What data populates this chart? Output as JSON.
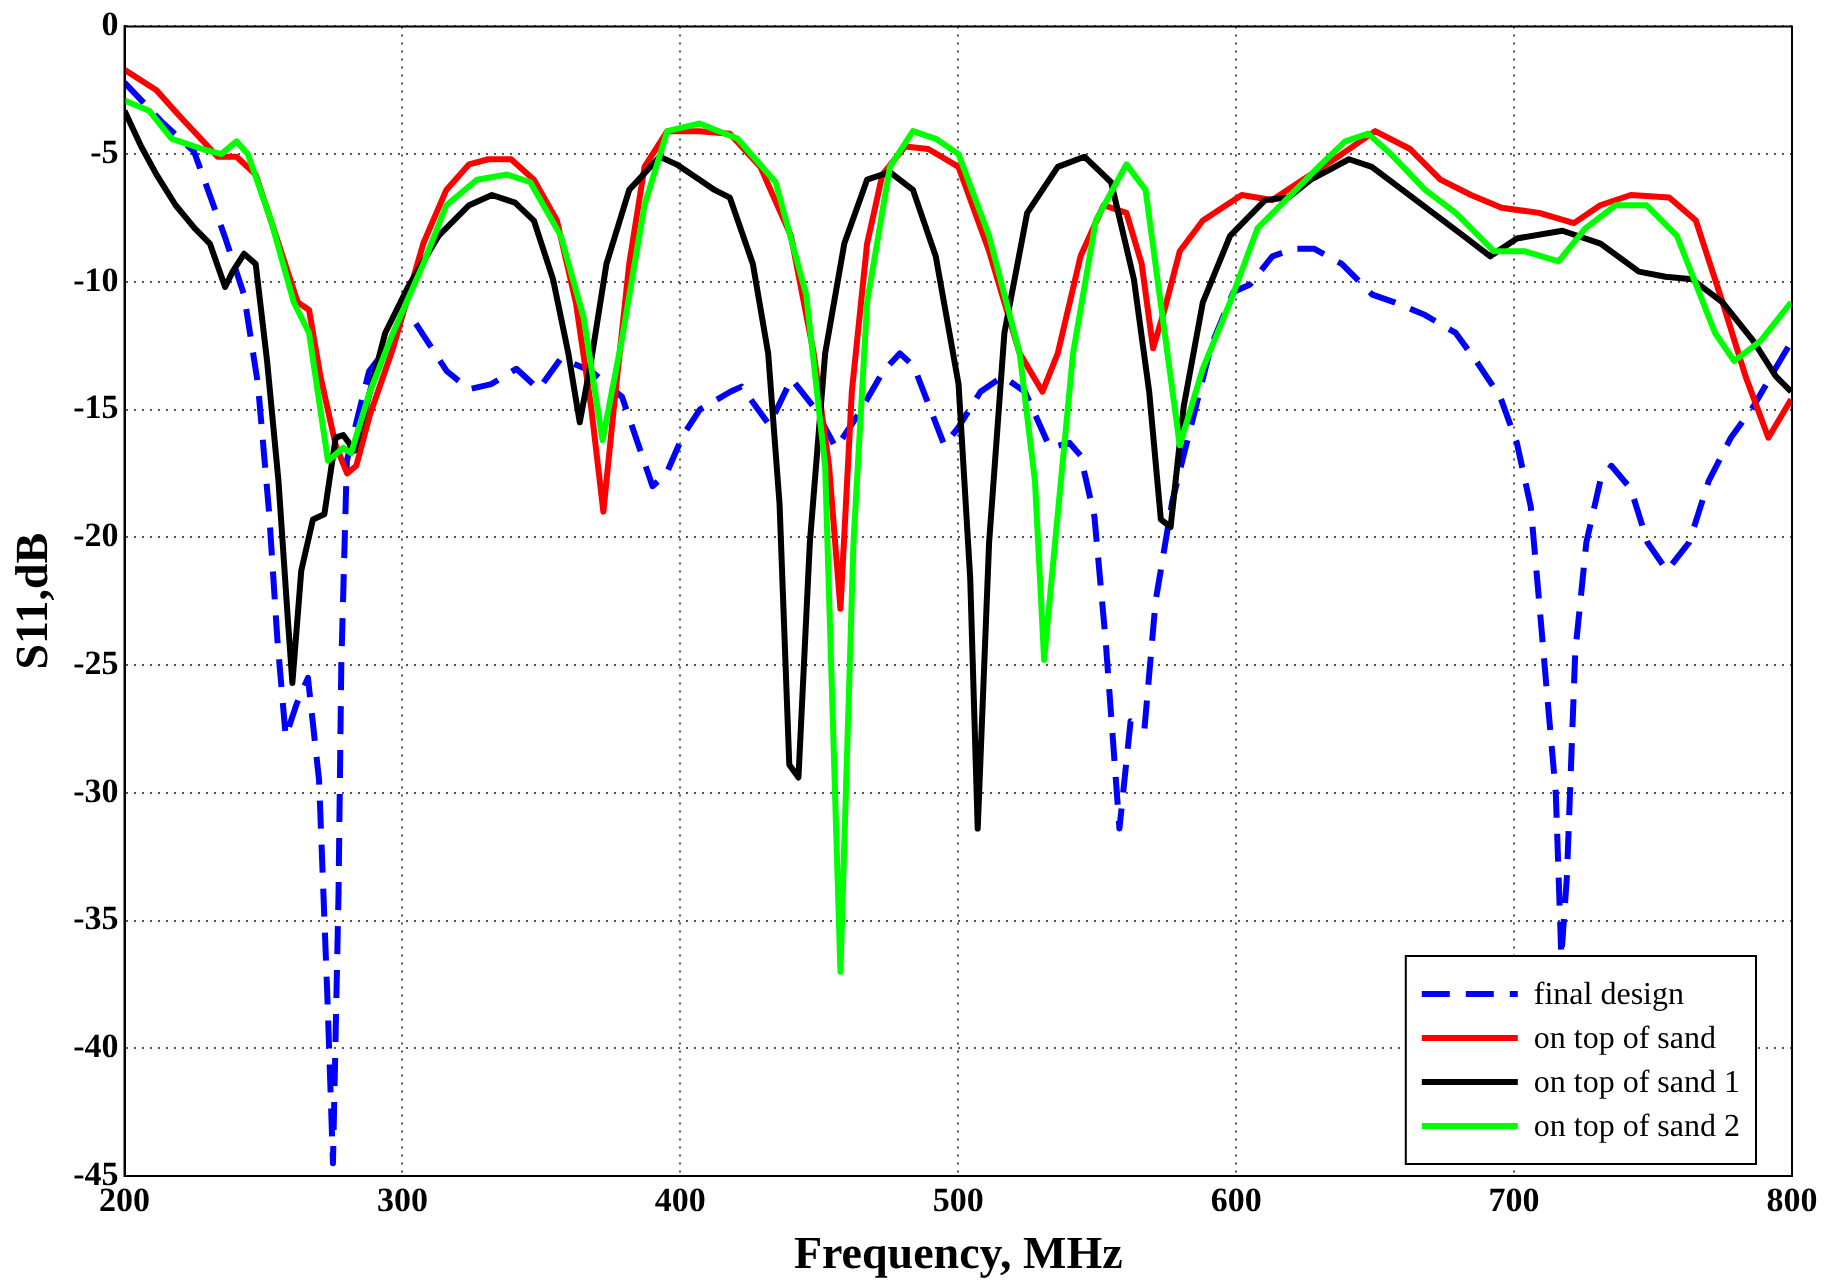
{
  "chart_data": {
    "type": "line",
    "xlabel": "Frequency, MHz",
    "ylabel": "S11,dB",
    "xlim": [
      200,
      800
    ],
    "xticks": [
      200,
      300,
      400,
      500,
      600,
      700,
      800
    ],
    "ylim": [
      -45,
      0
    ],
    "yticks": [
      -45,
      -40,
      -35,
      -30,
      -25,
      -20,
      -15,
      -10,
      -5,
      0
    ],
    "grid": true,
    "legend": "bottom right",
    "marker": "none",
    "series": [
      {
        "name": "final design",
        "color": "#0000ff",
        "line_style": "dashed",
        "x": [
          200,
          214,
          225,
          236,
          243,
          248,
          252,
          255,
          258,
          262,
          266,
          270,
          273,
          275,
          277,
          278,
          280,
          288,
          295,
          299,
          304,
          316,
          324,
          332,
          341,
          349,
          357,
          368,
          379,
          390,
          395,
          401,
          407,
          418,
          422,
          432,
          440,
          448,
          456,
          464,
          473,
          479,
          484,
          495,
          500,
          508,
          516,
          524,
          533,
          540,
          544,
          549,
          553,
          558,
          562,
          567,
          571,
          577,
          582,
          591,
          599,
          605,
          613,
          621,
          628,
          638,
          649,
          657,
          668,
          679,
          687,
          695,
          701,
          706,
          709,
          712,
          715,
          717,
          719,
          722,
          726,
          731,
          735,
          742,
          748,
          755,
          763,
          770,
          778,
          786,
          794,
          800
        ],
        "values": [
          -2.2,
          -3.8,
          -4.9,
          -8.2,
          -10.5,
          -14,
          -19,
          -24,
          -27.8,
          -26.5,
          -25.5,
          -29.5,
          -38,
          -44.5,
          -34,
          -25,
          -17,
          -13.5,
          -12.5,
          -11.7,
          -11.5,
          -13.5,
          -14.2,
          -14,
          -13.4,
          -14.2,
          -13,
          -13.5,
          -14.5,
          -18,
          -17.5,
          -16,
          -15,
          -14.3,
          -14.1,
          -15.6,
          -13.8,
          -14.9,
          -16.5,
          -15.2,
          -13.5,
          -12.8,
          -13.3,
          -16.4,
          -15.7,
          -14.3,
          -13.7,
          -14.3,
          -16.5,
          -16.3,
          -16.8,
          -19.2,
          -24,
          -31.4,
          -27.2,
          -27.5,
          -22.5,
          -18.6,
          -16.4,
          -12.5,
          -10.4,
          -10.1,
          -9,
          -8.7,
          -8.7,
          -9.3,
          -10.5,
          -10.8,
          -11.3,
          -12,
          -13.2,
          -14.5,
          -16.3,
          -18.8,
          -22.5,
          -26.3,
          -30,
          -36.4,
          -33.3,
          -24.5,
          -20.2,
          -17.8,
          -17.2,
          -18.1,
          -20.2,
          -21.3,
          -20.2,
          -17.8,
          -16.1,
          -14.9,
          -13.4,
          -12.3
        ]
      },
      {
        "name": "on top of sand",
        "color": "#ff0000",
        "x": [
          200,
          211.5,
          219.7,
          233.5,
          240.3,
          247.2,
          255.4,
          262.3,
          266.4,
          270.5,
          276,
          280.1,
          283.4,
          288.3,
          296.6,
          307.5,
          315.8,
          324,
          330.9,
          339.1,
          347.3,
          355.6,
          362.4,
          367.9,
          372.3,
          376.1,
          381.6,
          387.1,
          395.3,
          406.9,
          417.8,
          428.8,
          439.8,
          448,
          453.5,
          457.6,
          461.7,
          467.2,
          472.7,
          480.9,
          489.2,
          500.1,
          511.1,
          522.1,
          530.3,
          535.8,
          544,
          552.3,
          560.5,
          566,
          570.1,
          574.2,
          579.7,
          588,
          602,
          613,
          624,
          638,
          650,
          662.6,
          673.5,
          684.5,
          695.5,
          709,
          721.5,
          731,
          742,
          755.8,
          765.4,
          775,
          783.3,
          791.5,
          799.7
        ],
        "values": [
          -1.7,
          -2.5,
          -3.5,
          -5.1,
          -5.1,
          -5.8,
          -8.5,
          -10.8,
          -11.1,
          -13.7,
          -16.4,
          -17.5,
          -17.2,
          -15.2,
          -12.6,
          -8.5,
          -6.4,
          -5.4,
          -5.2,
          -5.2,
          -6,
          -7.6,
          -10.8,
          -14.9,
          -19,
          -14.9,
          -9.3,
          -5.5,
          -4.1,
          -4.1,
          -4.2,
          -5.5,
          -8.2,
          -12.8,
          -17.2,
          -22.8,
          -14.3,
          -8.5,
          -5.8,
          -4.7,
          -4.8,
          -5.5,
          -8.8,
          -12.8,
          -14.3,
          -12.8,
          -9,
          -7,
          -7.3,
          -9.3,
          -12.6,
          -11.1,
          -8.8,
          -7.6,
          -6.6,
          -6.8,
          -6,
          -5,
          -4.1,
          -4.8,
          -6,
          -6.6,
          -7.1,
          -7.3,
          -7.7,
          -7,
          -6.6,
          -6.7,
          -7.6,
          -10.8,
          -13.7,
          -16.1,
          -14.6
        ]
      },
      {
        "name": "on top of sand 1",
        "color": "#000000",
        "x": [
          200,
          206,
          211.5,
          218.4,
          225.2,
          230.7,
          236.2,
          238.9,
          243,
          247.2,
          251.3,
          255.4,
          258.7,
          260.4,
          263.6,
          267.8,
          271.9,
          276,
          278.7,
          282.8,
          288.3,
          293.8,
          302,
          313,
          324,
          332.2,
          340.5,
          347.3,
          354.2,
          359.7,
          363.8,
          367.9,
          373.4,
          381.6,
          392.6,
          398.6,
          406.9,
          412.3,
          417.8,
          426.1,
          431.6,
          435.7,
          439.2,
          442.5,
          446.6,
          452.1,
          459,
          467.2,
          475.4,
          483.7,
          491.9,
          500.1,
          504.3,
          507,
          511.1,
          516.6,
          524.8,
          535.8,
          545.4,
          555,
          563.2,
          568.7,
          572.9,
          576.4,
          581.1,
          588,
          597.8,
          610.4,
          618.7,
          626.9,
          640.6,
          648.8,
          659.8,
          670.8,
          681.8,
          691.4,
          701,
          717.4,
          731.1,
          744.9,
          754.5,
          764.1,
          775,
          786,
          794.2,
          799.7
        ],
        "values": [
          -3.3,
          -4.7,
          -5.8,
          -7,
          -7.9,
          -8.5,
          -10.2,
          -9.6,
          -8.9,
          -9.3,
          -13.1,
          -17.8,
          -23.1,
          -25.7,
          -21.3,
          -19.3,
          -19.1,
          -16.1,
          -16,
          -16.6,
          -14.3,
          -12,
          -10.2,
          -8.2,
          -7,
          -6.6,
          -6.9,
          -7.6,
          -9.9,
          -12.8,
          -15.5,
          -13.1,
          -9.3,
          -6.4,
          -5.1,
          -5.4,
          -6,
          -6.4,
          -6.7,
          -9.3,
          -12.8,
          -18.7,
          -28.9,
          -29.4,
          -20.2,
          -12.8,
          -8.5,
          -6,
          -5.7,
          -6.4,
          -9,
          -14,
          -21.6,
          -31.4,
          -20.2,
          -12,
          -7.3,
          -5.5,
          -5.1,
          -6.1,
          -9.9,
          -14.3,
          -19.3,
          -19.6,
          -14.9,
          -10.8,
          -8.2,
          -6.8,
          -6.7,
          -6,
          -5.2,
          -5.5,
          -6.4,
          -7.3,
          -8.2,
          -9,
          -8.3,
          -8,
          -8.5,
          -9.6,
          -9.8,
          -9.9,
          -10.8,
          -12.3,
          -13.7,
          -14.3
        ]
      },
      {
        "name": "on top of sand 2",
        "color": "#00ff00",
        "x": [
          200,
          208.8,
          217,
          228,
          234.8,
          240.3,
          244.4,
          252.7,
          260.9,
          266.4,
          273.2,
          278.7,
          281.5,
          288.3,
          296.6,
          307.5,
          315.8,
          326.8,
          337.7,
          346,
          357,
          365.2,
          372,
          378.9,
          387.1,
          395.3,
          406.9,
          420.6,
          434.3,
          445.3,
          452.1,
          457.6,
          462.3,
          467.2,
          475.4,
          483.7,
          491.9,
          500.1,
          511.1,
          522.1,
          527.6,
          530.9,
          534.4,
          541.3,
          549.5,
          560.5,
          567.4,
          572.8,
          579.7,
          588,
          597.8,
          607.7,
          618.7,
          629.6,
          639.2,
          647.5,
          655.7,
          668,
          679,
          692.7,
          703.7,
          716,
          725.7,
          736.6,
          747.6,
          758.6,
          772.3,
          779.2,
          788.8,
          799.7
        ],
        "values": [
          -2.9,
          -3.3,
          -4.4,
          -4.8,
          -5,
          -4.5,
          -5,
          -7.6,
          -10.8,
          -12,
          -17,
          -16.5,
          -16.7,
          -14.3,
          -12,
          -9.3,
          -7,
          -6,
          -5.8,
          -6.1,
          -8.2,
          -11.4,
          -16.2,
          -12.3,
          -7,
          -4.1,
          -3.8,
          -4.4,
          -6.1,
          -10.5,
          -17.2,
          -37,
          -20.2,
          -10.8,
          -5.5,
          -4.1,
          -4.4,
          -5,
          -8.2,
          -12.8,
          -17.8,
          -24.8,
          -20.7,
          -12.8,
          -7.6,
          -5.4,
          -6.4,
          -10.8,
          -16.4,
          -13.4,
          -10.8,
          -7.9,
          -6.7,
          -5.5,
          -4.5,
          -4.2,
          -5,
          -6.4,
          -7.3,
          -8.8,
          -8.8,
          -9.2,
          -7.9,
          -7,
          -7,
          -8.2,
          -12,
          -13.1,
          -12.3,
          -10.8
        ]
      }
    ]
  }
}
